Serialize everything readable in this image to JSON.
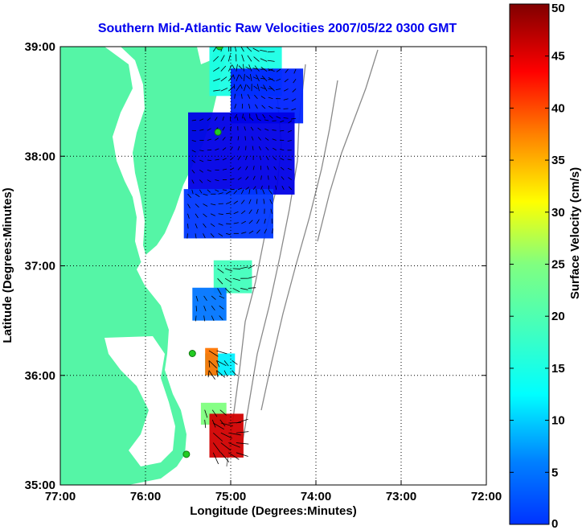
{
  "chart_data": {
    "type": "heatmap",
    "title": "Southern Mid-Atlantic Raw Velocities 2007/05/22 0300 GMT",
    "xlabel": "Longitude (Degrees:Minutes)",
    "ylabel": "Latitude (Degrees:Minutes)",
    "x_ticks": [
      {
        "value": -77,
        "label": "77:00"
      },
      {
        "value": -76,
        "label": "76:00"
      },
      {
        "value": -75,
        "label": "75:00"
      },
      {
        "value": -74,
        "label": "74:00"
      },
      {
        "value": -73,
        "label": "73:00"
      },
      {
        "value": -72,
        "label": "72:00"
      }
    ],
    "y_ticks": [
      {
        "value": 35,
        "label": "35:00"
      },
      {
        "value": 36,
        "label": "36:00"
      },
      {
        "value": 37,
        "label": "37:00"
      },
      {
        "value": 38,
        "label": "38:00"
      },
      {
        "value": 39,
        "label": "39:00"
      }
    ],
    "xlim": [
      -77,
      -72
    ],
    "ylim": [
      35,
      39
    ],
    "grid": true,
    "colorbar": {
      "label": "Surface Velocity (cm/s)",
      "min": 0,
      "max": 50,
      "ticks": [
        0,
        5,
        10,
        15,
        20,
        25,
        30,
        35,
        40,
        45,
        50
      ],
      "colormap": "jet"
    },
    "colors": {
      "land": "#55f5a6",
      "grid": "#000000",
      "bathymetry": "#8a8a8a",
      "station": "#22cc22",
      "vectors": "#000000"
    },
    "velocity_patches": [
      {
        "lon_min": -75.25,
        "lon_max": -74.4,
        "lat_min": 38.55,
        "lat_max": 39.0,
        "speed": 20
      },
      {
        "lon_min": -75.0,
        "lon_max": -74.15,
        "lat_min": 38.3,
        "lat_max": 38.8,
        "speed": 8
      },
      {
        "lon_min": -75.5,
        "lon_max": -74.25,
        "lat_min": 37.65,
        "lat_max": 38.4,
        "speed": 5
      },
      {
        "lon_min": -75.55,
        "lon_max": -74.5,
        "lat_min": 37.25,
        "lat_max": 37.7,
        "speed": 9
      },
      {
        "lon_min": -75.2,
        "lon_max": -74.75,
        "lat_min": 36.75,
        "lat_max": 37.05,
        "speed": 22
      },
      {
        "lon_min": -75.45,
        "lon_max": -75.05,
        "lat_min": 36.5,
        "lat_max": 36.8,
        "speed": 12
      },
      {
        "lon_min": -75.3,
        "lon_max": -74.95,
        "lat_min": 36.0,
        "lat_max": 36.2,
        "speed": 18
      },
      {
        "lon_min": -75.3,
        "lon_max": -75.15,
        "lat_min": 36.0,
        "lat_max": 36.25,
        "speed": 38
      },
      {
        "lon_min": -75.35,
        "lon_max": -75.05,
        "lat_min": 35.55,
        "lat_max": 35.75,
        "speed": 25
      },
      {
        "lon_min": -75.25,
        "lon_max": -74.85,
        "lat_min": 35.25,
        "lat_max": 35.65,
        "speed": 46
      }
    ],
    "stations": [
      {
        "lon": -75.13,
        "lat": 39.0
      },
      {
        "lon": -75.15,
        "lat": 38.22
      },
      {
        "lon": -75.45,
        "lat": 36.2
      },
      {
        "lon": -75.52,
        "lat": 35.28
      }
    ]
  }
}
